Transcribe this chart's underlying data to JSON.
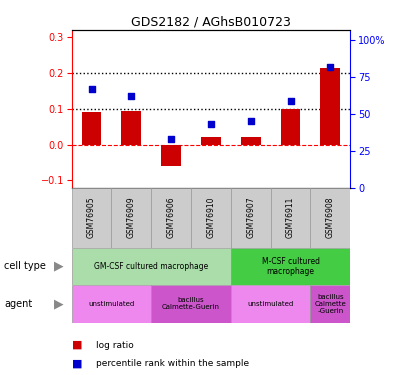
{
  "title": "GDS2182 / AGhsB010723",
  "samples": [
    "GSM76905",
    "GSM76909",
    "GSM76906",
    "GSM76910",
    "GSM76907",
    "GSM76911",
    "GSM76908"
  ],
  "log_ratio": [
    0.09,
    0.095,
    -0.06,
    0.02,
    0.02,
    0.1,
    0.215
  ],
  "percentile_right": [
    67,
    62,
    33,
    43,
    45,
    59,
    82
  ],
  "bar_color": "#cc0000",
  "dot_color": "#0000cc",
  "ylim_left": [
    -0.12,
    0.32
  ],
  "ylim_right": [
    0,
    107
  ],
  "left_yticks": [
    -0.1,
    0.0,
    0.1,
    0.2,
    0.3
  ],
  "right_yticks": [
    0,
    25,
    50,
    75,
    100
  ],
  "hline_dotted": [
    0.2,
    0.1
  ],
  "hline_zero": 0.0,
  "cell_type_row": [
    {
      "label": "GM-CSF cultured macrophage",
      "start": 0,
      "end": 4,
      "color": "#aaddaa"
    },
    {
      "label": "M-CSF cultured\nmacrophage",
      "start": 4,
      "end": 7,
      "color": "#44cc44"
    }
  ],
  "agent_row": [
    {
      "label": "unstimulated",
      "start": 0,
      "end": 2,
      "color": "#ee88ee"
    },
    {
      "label": "bacillus\nCalmette-Guerin",
      "start": 2,
      "end": 4,
      "color": "#cc55cc"
    },
    {
      "label": "unstimulated",
      "start": 4,
      "end": 6,
      "color": "#ee88ee"
    },
    {
      "label": "bacillus\nCalmette\n-Guerin",
      "start": 6,
      "end": 7,
      "color": "#cc55cc"
    }
  ],
  "legend_items": [
    {
      "label": "log ratio",
      "color": "#cc0000"
    },
    {
      "label": "percentile rank within the sample",
      "color": "#0000cc"
    }
  ],
  "row_labels": [
    "cell type",
    "agent"
  ],
  "arrow_color": "#888888",
  "sample_bg": "#cccccc"
}
